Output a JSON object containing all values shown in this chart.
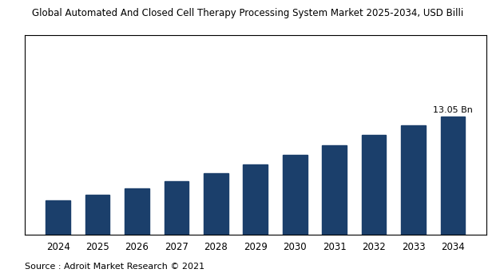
{
  "title": "Global Automated And Closed Cell Therapy Processing System Market 2025-2034, USD Billi",
  "source_text": "Source : Adroit Market Research © 2021",
  "years": [
    2024,
    2025,
    2026,
    2027,
    2028,
    2029,
    2030,
    2031,
    2032,
    2033,
    2034
  ],
  "values": [
    3.8,
    4.4,
    5.1,
    5.9,
    6.8,
    7.8,
    8.8,
    9.9,
    11.0,
    12.1,
    13.05
  ],
  "bar_color": "#1b3f6b",
  "annotation_value": "13.05 Bn",
  "annotation_year_idx": 10,
  "background_color": "#ffffff",
  "plot_bg_color": "#ffffff",
  "ylim_max": 22.0,
  "title_fontsize": 8.5,
  "tick_fontsize": 8.5,
  "source_fontsize": 8,
  "annotation_fontsize": 8
}
